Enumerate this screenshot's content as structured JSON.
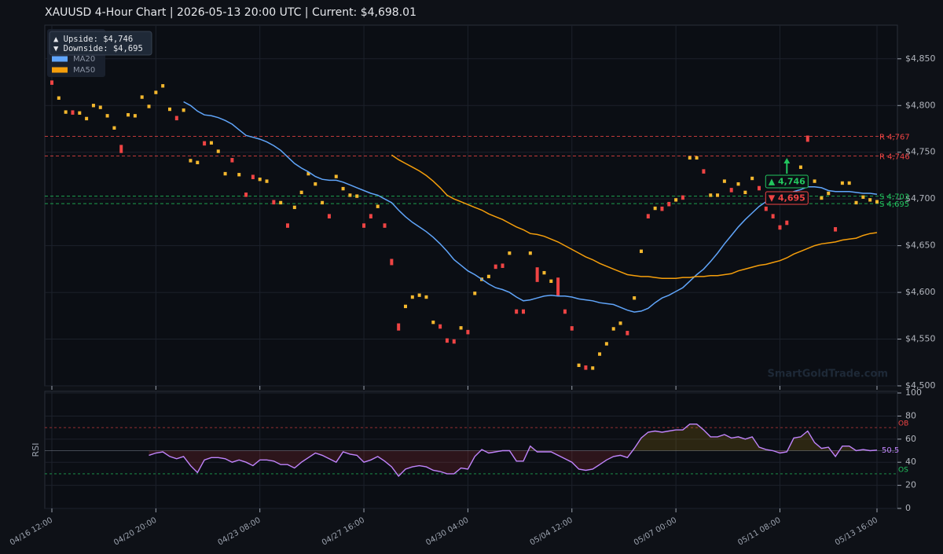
{
  "chart_data": [
    {
      "type": "candlestick",
      "title": "XAUUSD  4-Hour Chart  |  2026-05-13 20:00 UTC  |  Current: $4,698.01",
      "up_color": "#f5b82e",
      "down_color": "#ef4444",
      "open": [
        4826,
        4807,
        4792,
        4794,
        4791,
        4785,
        4799,
        4797,
        4788,
        4775,
        4757,
        4789,
        4788,
        4808,
        4798,
        4813,
        4820,
        4795,
        4788,
        4794,
        4740,
        4738,
        4761,
        4759,
        4750,
        4726,
        4743,
        4725,
        4706,
        4725,
        4720,
        4718,
        4698,
        4695,
        4673,
        4690,
        4706,
        4726,
        4715,
        4695,
        4683,
        4723,
        4710,
        4703,
        4702,
        4673,
        4683,
        4691,
        4673,
        4635,
        4566,
        4584,
        4594,
        4596,
        4594,
        4567,
        4565,
        4550,
        4549,
        4561,
        4559,
        4598,
        4613,
        4616,
        4629,
        4630,
        4641,
        4581,
        4581,
        4641,
        4626,
        4620,
        4611,
        4615,
        4581,
        4563,
        4521,
        4521,
        4518,
        4533,
        4544,
        4560,
        4566,
        4558,
        4593,
        4643,
        4683,
        4689,
        4691,
        4696,
        4698,
        4703,
        4743,
        4743,
        4731,
        4703,
        4703,
        4718,
        4711,
        4715,
        4706,
        4721,
        4713,
        4691,
        4683,
        4671,
        4676,
        4718,
        4733,
        4767,
        4718,
        4700,
        4705,
        4669,
        4716,
        4716,
        4695,
        4701,
        4698,
        4696
      ],
      "close": [
        4823,
        4809,
        4794,
        4791,
        4793,
        4787,
        4801,
        4799,
        4790,
        4777,
        4750,
        4791,
        4790,
        4810,
        4800,
        4815,
        4822,
        4797,
        4785,
        4796,
        4742,
        4740,
        4758,
        4761,
        4752,
        4728,
        4740,
        4727,
        4703,
        4722,
        4722,
        4720,
        4695,
        4697,
        4670,
        4692,
        4708,
        4728,
        4717,
        4697,
        4680,
        4725,
        4712,
        4705,
        4704,
        4670,
        4680,
        4693,
        4670,
        4630,
        4560,
        4586,
        4596,
        4598,
        4596,
        4569,
        4562,
        4547,
        4546,
        4563,
        4556,
        4600,
        4615,
        4618,
        4626,
        4627,
        4643,
        4578,
        4578,
        4643,
        4612,
        4622,
        4613,
        4597,
        4578,
        4560,
        4523,
        4518,
        4520,
        4535,
        4546,
        4562,
        4568,
        4555,
        4595,
        4645,
        4680,
        4691,
        4688,
        4693,
        4700,
        4700,
        4745,
        4745,
        4728,
        4705,
        4705,
        4720,
        4708,
        4717,
        4708,
        4723,
        4710,
        4688,
        4680,
        4668,
        4673,
        4720,
        4735,
        4762,
        4720,
        4702,
        4707,
        4666,
        4718,
        4718,
        4697,
        4703,
        4700,
        4698
      ],
      "series": [
        {
          "name": "MA20",
          "color": "#60a5fa",
          "values": [
            null,
            null,
            null,
            null,
            null,
            null,
            null,
            null,
            null,
            null,
            null,
            null,
            null,
            null,
            null,
            null,
            null,
            null,
            null,
            4804,
            4800,
            4794,
            4790,
            4789,
            4787,
            4784,
            4780,
            4774,
            4768,
            4766,
            4764,
            4761,
            4757,
            4752,
            4745,
            4738,
            4733,
            4729,
            4724,
            4721,
            4720,
            4720,
            4718,
            4715,
            4712,
            4709,
            4706,
            4704,
            4700,
            4696,
            4688,
            4681,
            4675,
            4670,
            4665,
            4659,
            4652,
            4644,
            4635,
            4629,
            4623,
            4619,
            4614,
            4609,
            4605,
            4603,
            4600,
            4595,
            4591,
            4592,
            4594,
            4596,
            4597,
            4596,
            4596,
            4595,
            4593,
            4592,
            4591,
            4589,
            4588,
            4587,
            4584,
            4581,
            4579,
            4580,
            4583,
            4589,
            4594,
            4597,
            4601,
            4605,
            4612,
            4619,
            4625,
            4633,
            4642,
            4652,
            4661,
            4670,
            4678,
            4685,
            4692,
            4697,
            4703,
            4704,
            4705,
            4708,
            4710,
            4713,
            4713,
            4712,
            4709,
            4708,
            4708,
            4708,
            4707,
            4706,
            4706,
            4705
          ]
        },
        {
          "name": "MA50",
          "color": "#f59e0b",
          "values": [
            null,
            null,
            null,
            null,
            null,
            null,
            null,
            null,
            null,
            null,
            null,
            null,
            null,
            null,
            null,
            null,
            null,
            null,
            null,
            null,
            null,
            null,
            null,
            null,
            null,
            null,
            null,
            null,
            null,
            null,
            null,
            null,
            null,
            null,
            null,
            null,
            null,
            null,
            null,
            null,
            null,
            null,
            null,
            null,
            null,
            null,
            null,
            null,
            null,
            4747,
            4742,
            4738,
            4734,
            4730,
            4725,
            4719,
            4712,
            4704,
            4700,
            4697,
            4694,
            4691,
            4688,
            4684,
            4681,
            4678,
            4674,
            4670,
            4667,
            4663,
            4662,
            4660,
            4657,
            4654,
            4650,
            4646,
            4642,
            4638,
            4635,
            4631,
            4628,
            4625,
            4622,
            4619,
            4618,
            4617,
            4617,
            4616,
            4615,
            4615,
            4615,
            4616,
            4616,
            4617,
            4617,
            4618,
            4618,
            4619,
            4620,
            4623,
            4625,
            4627,
            4629,
            4630,
            4632,
            4634,
            4637,
            4641,
            4644,
            4647,
            4650,
            4652,
            4653,
            4654,
            4656,
            4657,
            4658,
            4661,
            4663,
            4664
          ]
        }
      ],
      "ylim": [
        4500,
        4886
      ],
      "yticks": [
        {
          "value": 4500,
          "label": "$4,500"
        },
        {
          "value": 4550,
          "label": "$4,550"
        },
        {
          "value": 4600,
          "label": "$4,600"
        },
        {
          "value": 4650,
          "label": "$4,650"
        },
        {
          "value": 4700,
          "label": "$4,700"
        },
        {
          "value": 4750,
          "label": "$4,750"
        },
        {
          "value": 4800,
          "label": "$4,800"
        },
        {
          "value": 4850,
          "label": "$4,850"
        }
      ],
      "grid": true,
      "legend": "upper left",
      "levels": [
        {
          "value": 4767,
          "label": "R 4,767",
          "color": "#ef4444"
        },
        {
          "value": 4746,
          "label": "R 4,746",
          "color": "#ef4444"
        },
        {
          "value": 4703,
          "label": "S 4,703",
          "color": "#22c55e"
        },
        {
          "value": 4695,
          "label": "S 4,695",
          "color": "#22c55e"
        }
      ],
      "annotations": [
        {
          "value": 4746,
          "label": "▲ 4,746",
          "color": "#22c55e"
        },
        {
          "value": 4695,
          "label": "▼ 4,695",
          "color": "#ef4444"
        }
      ],
      "notes": [
        "▲ Upside:   $4,746",
        "▼ Downside: $4,695"
      ],
      "watermark": "SmartGoldTrade.com"
    },
    {
      "type": "line",
      "ylabel": "RSI",
      "color": "#c084fc",
      "categories": [
        "04/16 12:00",
        null,
        null,
        null,
        null,
        null,
        null,
        null,
        null,
        null,
        null,
        null,
        null,
        null,
        null,
        "04/20 20:00",
        null,
        null,
        null,
        null,
        null,
        null,
        null,
        null,
        null,
        null,
        null,
        null,
        null,
        null,
        "04/23 08:00",
        null,
        null,
        null,
        null,
        null,
        null,
        null,
        null,
        null,
        null,
        null,
        null,
        null,
        null,
        "04/27 16:00",
        null,
        null,
        null,
        null,
        null,
        null,
        null,
        null,
        null,
        null,
        null,
        null,
        null,
        null,
        "04/30 04:00",
        null,
        null,
        null,
        null,
        null,
        null,
        null,
        null,
        null,
        null,
        null,
        null,
        null,
        null,
        "05/04 12:00",
        null,
        null,
        null,
        null,
        null,
        null,
        null,
        null,
        null,
        null,
        null,
        null,
        null,
        null,
        "05/07 00:00",
        null,
        null,
        null,
        null,
        null,
        null,
        null,
        null,
        null,
        null,
        null,
        null,
        null,
        null,
        "05/11 08:00",
        null,
        null,
        null,
        null,
        null,
        null,
        null,
        null,
        null,
        null,
        null,
        null,
        null,
        "05/13 16:00"
      ],
      "values": [
        null,
        null,
        null,
        null,
        null,
        null,
        null,
        null,
        null,
        null,
        null,
        null,
        null,
        null,
        46,
        48,
        49,
        45,
        43,
        45,
        37,
        31,
        42,
        44,
        44,
        43,
        40,
        42,
        40,
        37,
        42,
        42,
        41,
        38,
        38,
        35,
        40,
        44,
        48,
        46,
        43,
        40,
        49,
        47,
        46,
        40,
        42,
        45,
        41,
        36,
        28,
        34,
        36,
        37,
        36,
        33,
        32,
        30,
        30,
        35,
        34,
        45,
        51,
        48,
        49,
        50,
        50,
        41,
        41,
        54,
        49,
        49,
        49,
        46,
        43,
        40,
        34,
        33,
        34,
        38,
        42,
        45,
        46,
        44,
        52,
        61,
        66,
        67,
        66,
        67,
        68,
        68,
        73,
        73,
        68,
        62,
        62,
        64,
        61,
        62,
        60,
        62,
        53,
        51,
        50,
        48,
        49,
        61,
        62,
        67,
        57,
        52,
        53,
        45,
        54,
        54,
        50,
        51,
        50,
        50.5
      ],
      "ylim": [
        0,
        101.4
      ],
      "yticks": [
        0,
        20,
        40,
        60,
        80,
        100
      ],
      "grid": true,
      "levels": [
        {
          "value": 70,
          "label": "OB",
          "color": "#ef4444"
        },
        {
          "value": 30,
          "label": "OS",
          "color": "#22c55e"
        },
        {
          "value": 50,
          "color": "#6b7280"
        }
      ]
    }
  ]
}
